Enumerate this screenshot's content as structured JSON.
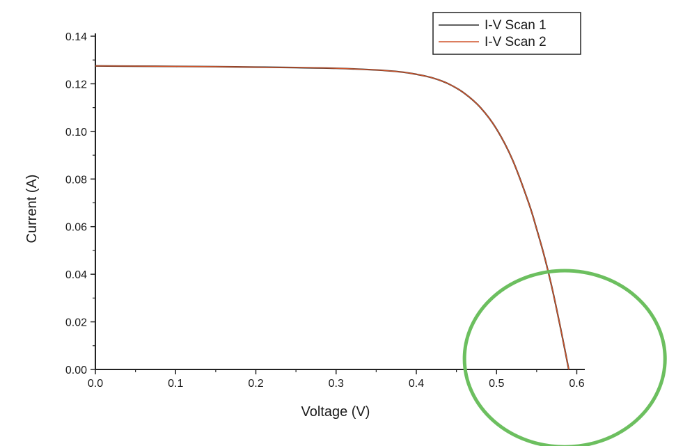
{
  "chart_data": {
    "type": "line",
    "title": "",
    "xlabel": "Voltage (V)",
    "ylabel": "Current (A)",
    "xlim": [
      0,
      0.61
    ],
    "ylim": [
      0,
      0.14
    ],
    "x_ticks": [
      0.0,
      0.1,
      0.2,
      0.3,
      0.4,
      0.5,
      0.6
    ],
    "x_tick_labels": [
      "0.0",
      "0.1",
      "0.2",
      "0.3",
      "0.4",
      "0.5",
      "0.6"
    ],
    "y_ticks": [
      0.0,
      0.02,
      0.04,
      0.06,
      0.08,
      0.1,
      0.12,
      0.14
    ],
    "y_tick_labels": [
      "0.00",
      "0.02",
      "0.04",
      "0.06",
      "0.08",
      "0.10",
      "0.12",
      "0.14"
    ],
    "grid": false,
    "legend_position": "top-right",
    "series": [
      {
        "name": "I-V Scan 1",
        "color": "#2a2a2a",
        "x": [
          0.0,
          0.05,
          0.1,
          0.15,
          0.2,
          0.25,
          0.3,
          0.35,
          0.38,
          0.4,
          0.42,
          0.44,
          0.46,
          0.48,
          0.5,
          0.52,
          0.54,
          0.55,
          0.56,
          0.57,
          0.58,
          0.59
        ],
        "y": [
          0.1275,
          0.1274,
          0.1273,
          0.1272,
          0.127,
          0.1268,
          0.1265,
          0.1258,
          0.125,
          0.124,
          0.1225,
          0.12,
          0.116,
          0.11,
          0.101,
          0.088,
          0.07,
          0.059,
          0.047,
          0.033,
          0.017,
          0.0
        ]
      },
      {
        "name": "I-V Scan 2",
        "color": "#d0542a",
        "x": [
          0.0,
          0.05,
          0.1,
          0.15,
          0.2,
          0.25,
          0.3,
          0.35,
          0.38,
          0.4,
          0.42,
          0.44,
          0.46,
          0.48,
          0.5,
          0.52,
          0.54,
          0.55,
          0.56,
          0.57,
          0.58,
          0.59
        ],
        "y": [
          0.1275,
          0.1274,
          0.1273,
          0.1272,
          0.127,
          0.1268,
          0.1265,
          0.1258,
          0.125,
          0.124,
          0.1225,
          0.12,
          0.116,
          0.11,
          0.101,
          0.088,
          0.07,
          0.059,
          0.047,
          0.033,
          0.017,
          0.0
        ]
      }
    ],
    "annotations": [
      {
        "type": "ellipse",
        "color": "#6cbf5f",
        "center": [
          0.585,
          0.0045
        ],
        "radius_x": 0.125,
        "radius_y": 0.037
      }
    ]
  }
}
